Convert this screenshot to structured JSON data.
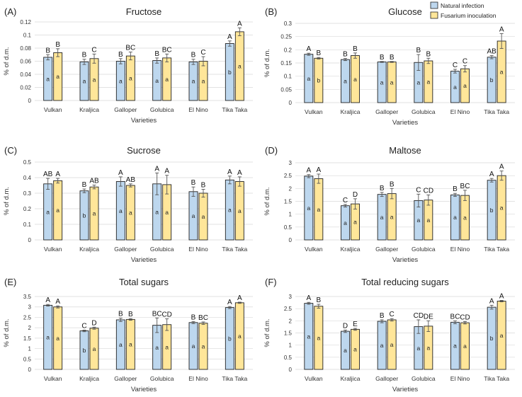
{
  "legend": {
    "title": "",
    "items": [
      {
        "label": "Natural infection",
        "color": "#BDD7EE"
      },
      {
        "label": "Fusarium inoculation",
        "color": "#FFE699"
      }
    ]
  },
  "colors": {
    "bar_edge": "#222222",
    "grid": "#d9d9d9"
  },
  "chart_data": [
    {
      "type": "bar",
      "panel": "(A)",
      "title": "Fructose",
      "xlabel": "Varieties",
      "ylabel": "% of d.m.",
      "categories": [
        "Vulkan",
        "Kraljica",
        "Galloper",
        "Golubica",
        "El Nino",
        "Tika Taka"
      ],
      "ylim": [
        0,
        0.12
      ],
      "yticks": [
        {
          "v": 0,
          "label": "0"
        },
        {
          "v": 0.02,
          "label": "0.02"
        },
        {
          "v": 0.04,
          "label": "0.04"
        },
        {
          "v": 0.06,
          "label": "0.06"
        },
        {
          "v": 0.08,
          "label": "0.08"
        },
        {
          "v": 0.1,
          "label": "0.1"
        },
        {
          "v": 0.12,
          "label": "0.12"
        }
      ],
      "series": [
        {
          "name": "Natural infection",
          "values": [
            0.066,
            0.059,
            0.06,
            0.061,
            0.059,
            0.087
          ],
          "err": [
            0.004,
            0.004,
            0.004,
            0.004,
            0.004,
            0.004
          ],
          "top_letters": [
            "B",
            "B",
            "B",
            "B",
            "B",
            "A"
          ],
          "in_letters": [
            "a",
            "a",
            "a",
            "a",
            "a",
            "b"
          ]
        },
        {
          "name": "Fusarium inoculation",
          "values": [
            0.073,
            0.064,
            0.068,
            0.065,
            0.06,
            0.105
          ],
          "err": [
            0.006,
            0.007,
            0.006,
            0.006,
            0.007,
            0.006
          ],
          "top_letters": [
            "B",
            "C",
            "BC",
            "BC",
            "C",
            "A"
          ],
          "in_letters": [
            "a",
            "a",
            "a",
            "a",
            "a",
            "a"
          ]
        }
      ]
    },
    {
      "type": "bar",
      "panel": "(B)",
      "title": "Glucose",
      "xlabel": "Varieties",
      "ylabel": "% of d.m.",
      "categories": [
        "Vulkan",
        "Kraljica",
        "Galloper",
        "Golubica",
        "El Nino",
        "Tika Taka"
      ],
      "ylim": [
        0,
        0.3
      ],
      "yticks": [
        {
          "v": 0,
          "label": "0"
        },
        {
          "v": 0.05,
          "label": "0.05"
        },
        {
          "v": 0.1,
          "label": "0.1"
        },
        {
          "v": 0.15,
          "label": "0.15"
        },
        {
          "v": 0.2,
          "label": "0.2"
        },
        {
          "v": 0.25,
          "label": "0.25"
        },
        {
          "v": 0.3,
          "label": "0.3"
        }
      ],
      "series": [
        {
          "name": "Natural infection",
          "values": [
            0.183,
            0.163,
            0.154,
            0.152,
            0.119,
            0.172
          ],
          "err": [
            0.004,
            0.004,
            0.002,
            0.03,
            0.007,
            0.006
          ],
          "top_letters": [
            "A",
            "B",
            "B",
            "B",
            "C",
            "AB"
          ],
          "in_letters": [
            "a",
            "a",
            "a",
            "a",
            "a",
            "b"
          ]
        },
        {
          "name": "Fusarium inoculation",
          "values": [
            0.168,
            0.178,
            0.154,
            0.158,
            0.128,
            0.233
          ],
          "err": [
            0.003,
            0.01,
            0.002,
            0.01,
            0.012,
            0.028
          ],
          "top_letters": [
            "B",
            "B",
            "B",
            "B",
            "C",
            "A"
          ],
          "in_letters": [
            "b",
            "a",
            "a",
            "a",
            "a",
            "a"
          ]
        }
      ]
    },
    {
      "type": "bar",
      "panel": "(C)",
      "title": "Sucrose",
      "xlabel": "Varieties",
      "ylabel": "% of d.m.",
      "categories": [
        "Vulkan",
        "Kraljica",
        "Galloper",
        "Golubica",
        "El Nino",
        "Tika Taka"
      ],
      "ylim": [
        0,
        0.5
      ],
      "yticks": [
        {
          "v": 0,
          "label": "0"
        },
        {
          "v": 0.1,
          "label": "0.1"
        },
        {
          "v": 0.2,
          "label": "0.2"
        },
        {
          "v": 0.3,
          "label": "0.3"
        },
        {
          "v": 0.4,
          "label": "0.4"
        },
        {
          "v": 0.5,
          "label": "0.5"
        }
      ],
      "series": [
        {
          "name": "Natural infection",
          "values": [
            0.36,
            0.315,
            0.375,
            0.36,
            0.31,
            0.385
          ],
          "err": [
            0.035,
            0.012,
            0.03,
            0.07,
            0.03,
            0.025
          ],
          "top_letters": [
            "AB",
            "B",
            "A",
            "A",
            "B",
            "A"
          ],
          "in_letters": [
            "a",
            "b",
            "a",
            "a",
            "a",
            "a"
          ]
        },
        {
          "name": "Fusarium inoculation",
          "values": [
            0.38,
            0.34,
            0.35,
            0.355,
            0.3,
            0.375
          ],
          "err": [
            0.015,
            0.012,
            0.01,
            0.06,
            0.025,
            0.03
          ],
          "top_letters": [
            "A",
            "AB",
            "AB",
            "A",
            "B",
            "A"
          ],
          "in_letters": [
            "a",
            "a",
            "a",
            "a",
            "a",
            "a"
          ]
        }
      ]
    },
    {
      "type": "bar",
      "panel": "(D)",
      "title": "Maltose",
      "xlabel": "Varieties",
      "ylabel": "% of d.m.",
      "categories": [
        "Vulkan",
        "Kraljica",
        "Galloper",
        "Golubica",
        "El Nino",
        "Tika Taka"
      ],
      "ylim": [
        0,
        3
      ],
      "yticks": [
        {
          "v": 0,
          "label": "0"
        },
        {
          "v": 0.5,
          "label": "0.5"
        },
        {
          "v": 1,
          "label": "1"
        },
        {
          "v": 1.5,
          "label": "1.5"
        },
        {
          "v": 2,
          "label": "2"
        },
        {
          "v": 2.5,
          "label": "2.5"
        },
        {
          "v": 3,
          "label": "3"
        }
      ],
      "series": [
        {
          "name": "Natural infection",
          "values": [
            2.48,
            1.33,
            1.77,
            1.53,
            1.75,
            2.32
          ],
          "err": [
            0.06,
            0.05,
            0.08,
            0.25,
            0.06,
            0.07
          ],
          "top_letters": [
            "A",
            "C",
            "B",
            "C",
            "B",
            "A"
          ],
          "in_letters": [
            "a",
            "a",
            "a",
            "a",
            "a",
            "b"
          ]
        },
        {
          "name": "Fusarium inoculation",
          "values": [
            2.38,
            1.4,
            1.8,
            1.55,
            1.73,
            2.5
          ],
          "err": [
            0.18,
            0.2,
            0.2,
            0.2,
            0.2,
            0.18
          ],
          "top_letters": [
            "A",
            "D",
            "B",
            "CD",
            "BC",
            "A"
          ],
          "in_letters": [
            "a",
            "a",
            "a",
            "a",
            "a",
            "a"
          ]
        }
      ]
    },
    {
      "type": "bar",
      "panel": "(E)",
      "title": "Total sugars",
      "xlabel": "Varieties",
      "ylabel": "% of d.m.",
      "categories": [
        "Vulkan",
        "Kraljica",
        "Galloper",
        "Golubica",
        "El Nino",
        "Tika Taka"
      ],
      "ylim": [
        0,
        3.5
      ],
      "yticks": [
        {
          "v": 0,
          "label": "0"
        },
        {
          "v": 0.5,
          "label": "0.5"
        },
        {
          "v": 1,
          "label": "1"
        },
        {
          "v": 1.5,
          "label": "1.5"
        },
        {
          "v": 2,
          "label": "2"
        },
        {
          "v": 2.5,
          "label": "2.5"
        },
        {
          "v": 3,
          "label": "3"
        },
        {
          "v": 3.5,
          "label": "3.5"
        }
      ],
      "series": [
        {
          "name": "Natural infection",
          "values": [
            3.08,
            1.85,
            2.38,
            2.12,
            2.25,
            2.97
          ],
          "err": [
            0.04,
            0.04,
            0.08,
            0.35,
            0.05,
            0.05
          ],
          "top_letters": [
            "A",
            "C",
            "B",
            "BC",
            "B",
            "A"
          ],
          "in_letters": [
            "a",
            "b",
            "a",
            "a",
            "a",
            "b"
          ]
        },
        {
          "name": "Fusarium inoculation",
          "values": [
            3.0,
            1.98,
            2.4,
            2.15,
            2.22,
            3.2
          ],
          "err": [
            0.05,
            0.05,
            0.04,
            0.28,
            0.06,
            0.03
          ],
          "top_letters": [
            "A",
            "D",
            "B",
            "CD",
            "BC",
            "A"
          ],
          "in_letters": [
            "a",
            "a",
            "a",
            "a",
            "a",
            "a"
          ]
        }
      ]
    },
    {
      "type": "bar",
      "panel": "(F)",
      "title": "Total reducing sugars",
      "xlabel": "Varieties",
      "ylabel": "% of d.m.",
      "categories": [
        "Vulkan",
        "Kraljica",
        "Galloper",
        "Golubica",
        "El Nino",
        "Tika Taka"
      ],
      "ylim": [
        0,
        3
      ],
      "yticks": [
        {
          "v": 0,
          "label": "0"
        },
        {
          "v": 0.5,
          "label": "0.5"
        },
        {
          "v": 1,
          "label": "1"
        },
        {
          "v": 1.5,
          "label": "1.5"
        },
        {
          "v": 2,
          "label": "2"
        },
        {
          "v": 2.5,
          "label": "2.5"
        },
        {
          "v": 3,
          "label": "3"
        }
      ],
      "series": [
        {
          "name": "Natural infection",
          "values": [
            2.72,
            1.57,
            1.98,
            1.76,
            1.94,
            2.56
          ],
          "err": [
            0.04,
            0.05,
            0.06,
            0.28,
            0.06,
            0.08
          ],
          "top_letters": [
            "A",
            "D",
            "B",
            "CD",
            "BC",
            "A"
          ],
          "in_letters": [
            "a",
            "a",
            "a",
            "a",
            "a",
            "b"
          ]
        },
        {
          "name": "Fusarium inoculation",
          "values": [
            2.6,
            1.65,
            2.04,
            1.78,
            1.92,
            2.81
          ],
          "err": [
            0.08,
            0.04,
            0.05,
            0.22,
            0.05,
            0.03
          ],
          "top_letters": [
            "B",
            "E",
            "C",
            "DE",
            "CD",
            "A"
          ],
          "in_letters": [
            "a",
            "a",
            "a",
            "a",
            "a",
            "a"
          ]
        }
      ]
    }
  ]
}
